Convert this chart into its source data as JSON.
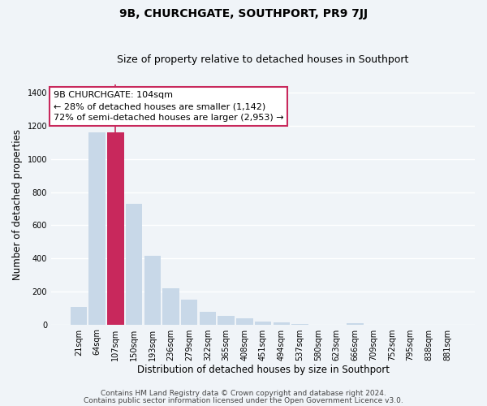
{
  "title": "9B, CHURCHGATE, SOUTHPORT, PR9 7JJ",
  "subtitle": "Size of property relative to detached houses in Southport",
  "xlabel": "Distribution of detached houses by size in Southport",
  "ylabel": "Number of detached properties",
  "bar_labels": [
    "21sqm",
    "64sqm",
    "107sqm",
    "150sqm",
    "193sqm",
    "236sqm",
    "279sqm",
    "322sqm",
    "365sqm",
    "408sqm",
    "451sqm",
    "494sqm",
    "537sqm",
    "580sqm",
    "623sqm",
    "666sqm",
    "709sqm",
    "752sqm",
    "795sqm",
    "838sqm",
    "881sqm"
  ],
  "bar_values": [
    107,
    1160,
    1160,
    730,
    415,
    220,
    148,
    75,
    50,
    35,
    18,
    15,
    5,
    0,
    0,
    8,
    0,
    0,
    0,
    0,
    0
  ],
  "bar_color": "#c8d8e8",
  "highlight_bar_index": 2,
  "highlight_color": "#c8285c",
  "vline_x": 2,
  "vline_color": "#c8285c",
  "annotation_line1": "9B CHURCHGATE: 104sqm",
  "annotation_line2": "← 28% of detached houses are smaller (1,142)",
  "annotation_line3": "72% of semi-detached houses are larger (2,953) →",
  "annotation_box_color": "white",
  "annotation_box_edge": "#c8285c",
  "ylim": [
    0,
    1450
  ],
  "yticks": [
    0,
    200,
    400,
    600,
    800,
    1000,
    1200,
    1400
  ],
  "footer_line1": "Contains HM Land Registry data © Crown copyright and database right 2024.",
  "footer_line2": "Contains public sector information licensed under the Open Government Licence v3.0.",
  "background_color": "#f0f4f8",
  "plot_bg_color": "#f0f4f8",
  "grid_color": "white",
  "title_fontsize": 10,
  "subtitle_fontsize": 9,
  "axis_label_fontsize": 8.5,
  "tick_fontsize": 7,
  "annotation_fontsize": 8,
  "footer_fontsize": 6.5
}
